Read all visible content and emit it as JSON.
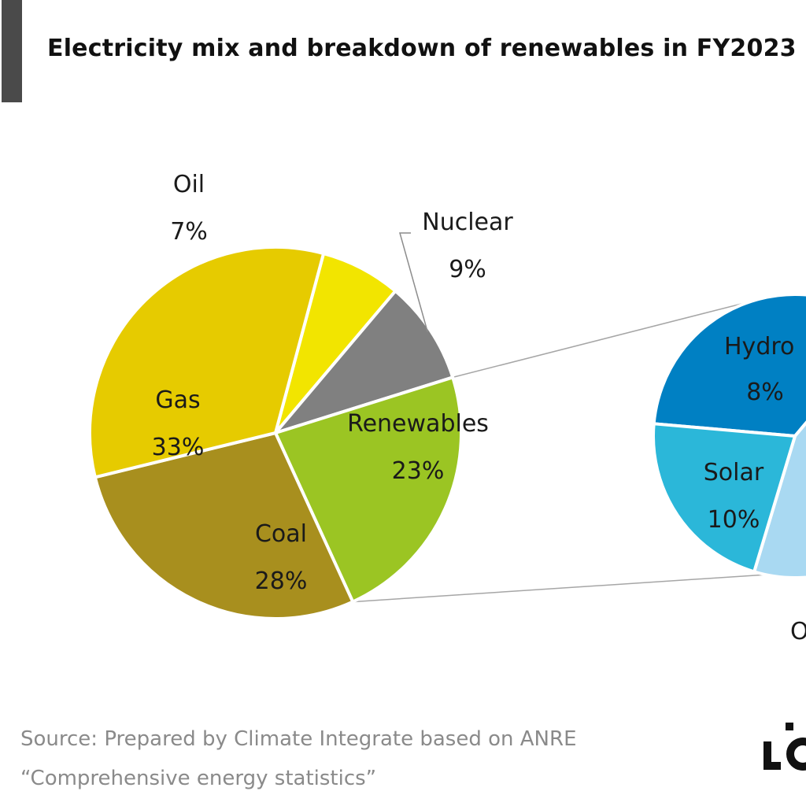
{
  "title": "Electricity mix and breakdown of renewables in FY2023",
  "chart_data": [
    {
      "type": "pie",
      "title": "Electricity mix FY2023",
      "categories": [
        "Oil",
        "Nuclear",
        "Renewables",
        "Coal",
        "Gas"
      ],
      "values": [
        7,
        9,
        23,
        28,
        33
      ],
      "value_labels": [
        "7%",
        "9%",
        "23%",
        "28%",
        "33%"
      ],
      "colors": [
        "#f2e500",
        "#808080",
        "#9bc523",
        "#a88f1e",
        "#e6cb00"
      ],
      "start_angle_deg": 15,
      "direction": "clockwise"
    },
    {
      "type": "pie",
      "title": "Breakdown of renewables",
      "categories": [
        "Hydro",
        "Solar",
        "Other"
      ],
      "values": [
        8,
        10,
        5
      ],
      "value_labels": [
        "8%",
        "10%",
        ""
      ],
      "visible_label_text": [
        "Hydro",
        "Solar",
        "O"
      ],
      "colors": [
        "#0080c3",
        "#a9d9f2",
        "#2bb7d9"
      ],
      "note": "partially cropped at right edge"
    }
  ],
  "source": {
    "line1": "Source: Prepared by Climate Integrate based on ANRE",
    "line2": "“Comprehensive energy statistics”"
  },
  "logo_icon": "logo-mark-icon"
}
